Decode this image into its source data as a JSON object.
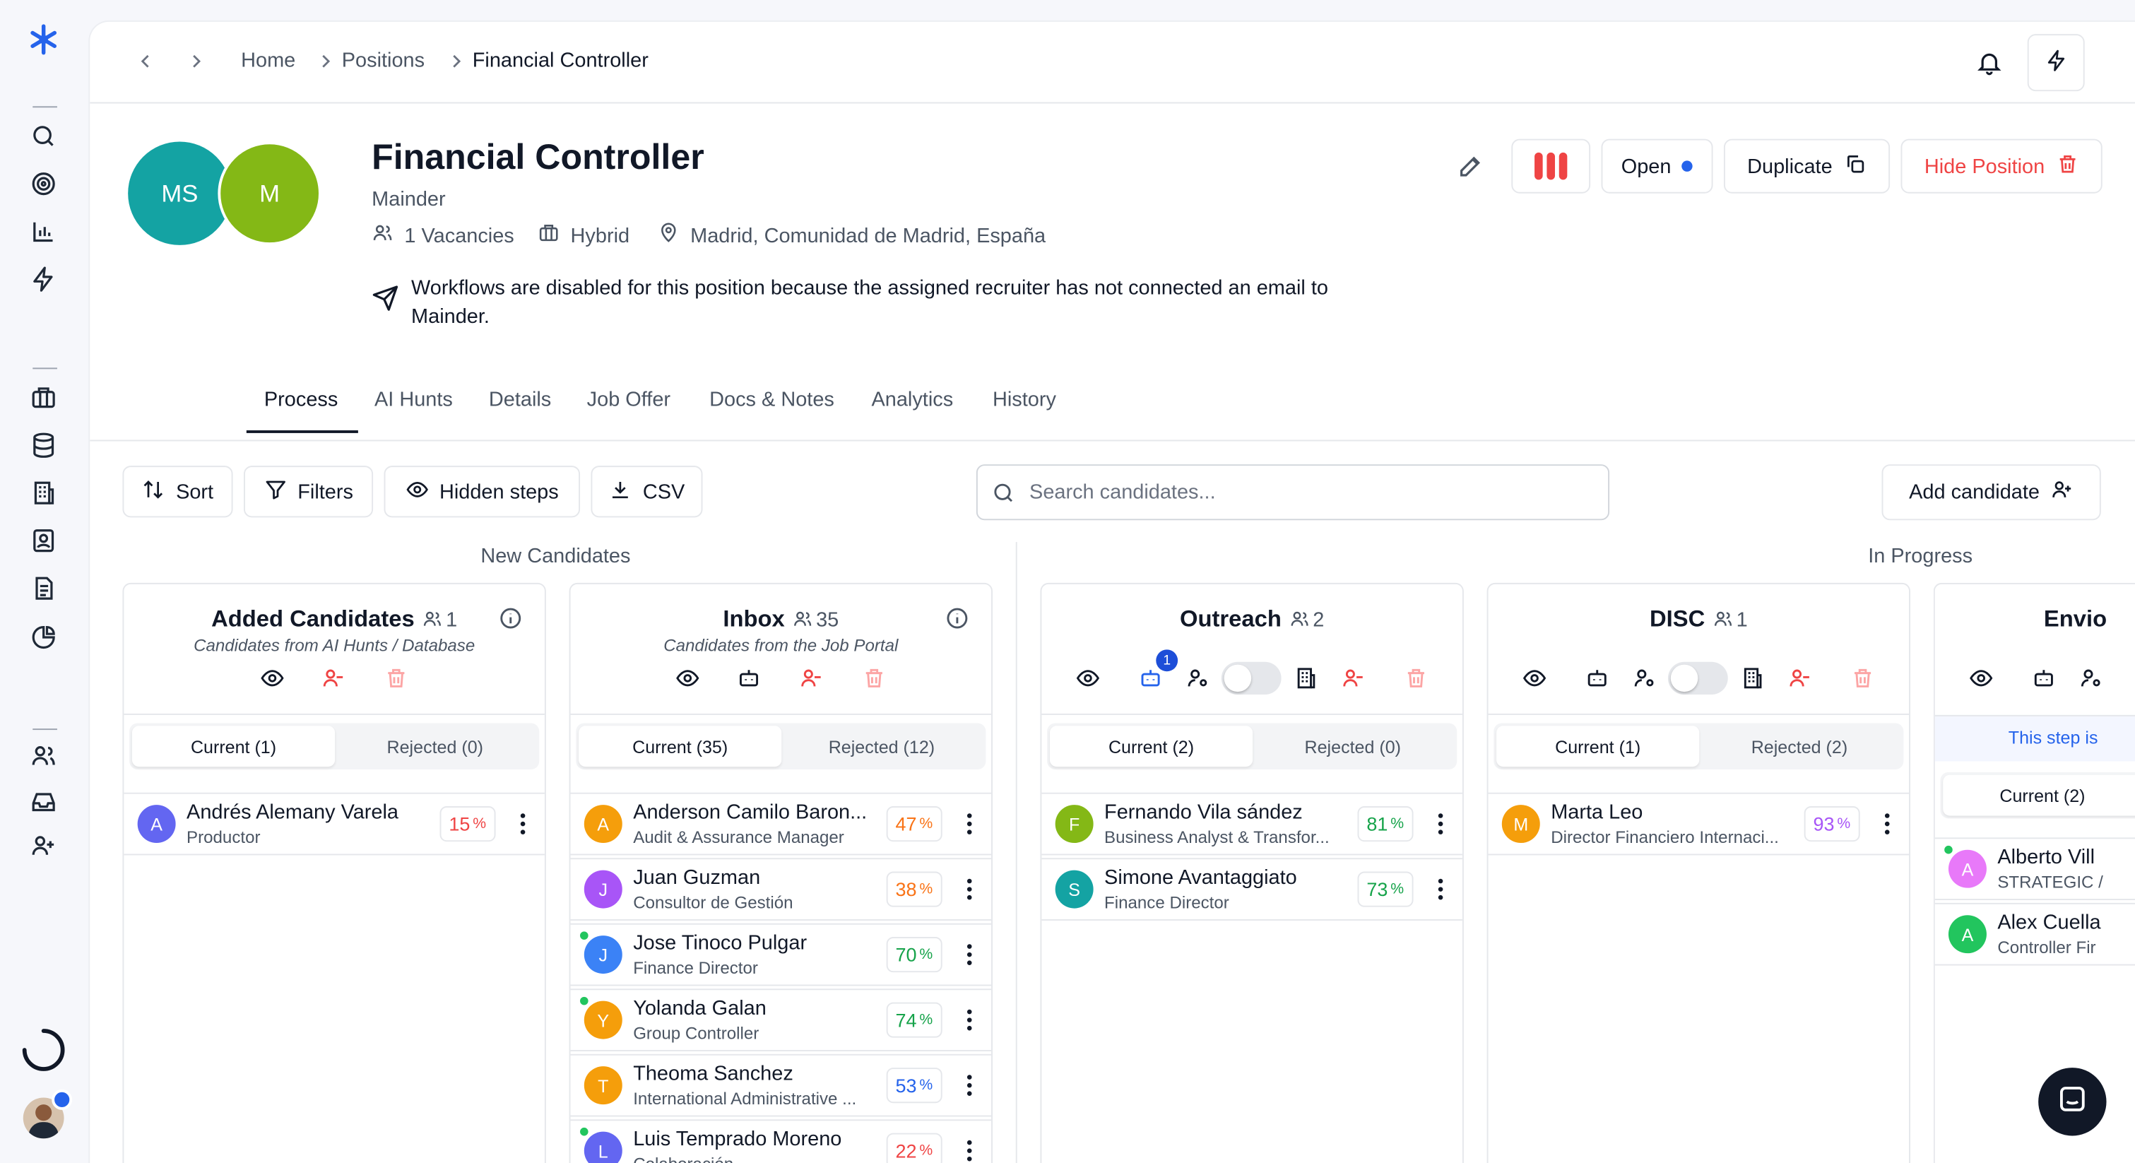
{
  "rail": {
    "logo": "flower-logo-icon",
    "items": [
      "search-icon",
      "target-icon",
      "bar-chart-icon",
      "bolt-icon",
      "briefcase-icon",
      "database-icon",
      "building-icon",
      "contact-card-icon",
      "document-icon",
      "pie-chart-icon",
      "users-icon",
      "inbox-icon",
      "user-plus-icon"
    ]
  },
  "breadcrumb": {
    "home": "Home",
    "positions": "Positions",
    "current": "Financial Controller"
  },
  "position": {
    "title": "Financial Controller",
    "company": "Mainder",
    "vacancies": "1 Vacancies",
    "work_mode": "Hybrid",
    "location": "Madrid, Comunidad de Madrid, España",
    "notice": "Workflows are disabled for this position because the assigned recruiter has not connected an email to Mainder.",
    "avatars": [
      {
        "initials": "MS",
        "color": "#14a3a3"
      },
      {
        "initials": "M",
        "color": "#84b816"
      }
    ]
  },
  "actions": {
    "status": "Open",
    "duplicate": "Duplicate",
    "hide": "Hide Position"
  },
  "tabs": [
    "Process",
    "AI Hunts",
    "Details",
    "Job Offer",
    "Docs & Notes",
    "Analytics",
    "History"
  ],
  "toolbar": {
    "sort": "Sort",
    "filters": "Filters",
    "hidden_steps": "Hidden steps",
    "csv": "CSV",
    "search_placeholder": "Search candidates...",
    "add_candidate": "Add candidate"
  },
  "groups": {
    "new": "New Candidates",
    "progress": "In Progress"
  },
  "columns": [
    {
      "title": "Added Candidates",
      "count": "1",
      "subtitle": "Candidates from AI Hunts / Database",
      "current": "Current (1)",
      "rejected": "Rejected (0)",
      "cards": [
        {
          "initial": "A",
          "color": "#6366f1",
          "name": "Andrés Alemany Varela",
          "role": "Productor",
          "score": "15",
          "score_color": "#ef4444",
          "online": false
        }
      ]
    },
    {
      "title": "Inbox",
      "count": "35",
      "subtitle": "Candidates from the Job Portal",
      "current": "Current (35)",
      "rejected": "Rejected (12)",
      "cards": [
        {
          "initial": "A",
          "color": "#f59e0b",
          "name": "Anderson Camilo Baron...",
          "role": "Audit & Assurance Manager",
          "score": "47",
          "score_color": "#f97316",
          "online": false
        },
        {
          "initial": "J",
          "color": "#a855f7",
          "name": "Juan Guzman",
          "role": "Consultor de Gestión",
          "score": "38",
          "score_color": "#f97316",
          "online": false
        },
        {
          "initial": "J",
          "color": "#3b82f6",
          "name": "Jose Tinoco Pulgar",
          "role": "Finance Director",
          "score": "70",
          "score_color": "#16a34a",
          "online": true
        },
        {
          "initial": "Y",
          "color": "#f59e0b",
          "name": "Yolanda Galan",
          "role": "Group Controller",
          "score": "74",
          "score_color": "#16a34a",
          "online": true
        },
        {
          "initial": "T",
          "color": "#f59e0b",
          "name": "Theoma Sanchez",
          "role": "International Administrative ...",
          "score": "53",
          "score_color": "#2563eb",
          "online": false
        },
        {
          "initial": "L",
          "color": "#6366f1",
          "name": "Luis Temprado Moreno",
          "role": "Colaboración",
          "score": "22",
          "score_color": "#ef4444",
          "online": true
        }
      ]
    },
    {
      "title": "Outreach",
      "count": "2",
      "bot_badge": "1",
      "current": "Current (2)",
      "rejected": "Rejected (0)",
      "cards": [
        {
          "initial": "F",
          "color": "#84b816",
          "name": "Fernando Vila sández",
          "role": "Business Analyst & Transfor...",
          "score": "81",
          "score_color": "#16a34a",
          "online": false
        },
        {
          "initial": "S",
          "color": "#14a3a3",
          "name": "Simone Avantaggiato",
          "role": "Finance Director",
          "score": "73",
          "score_color": "#16a34a",
          "online": false
        }
      ]
    },
    {
      "title": "DISC",
      "count": "1",
      "current": "Current (1)",
      "rejected": "Rejected (2)",
      "cards": [
        {
          "initial": "M",
          "color": "#f59e0b",
          "name": "Marta Leo",
          "role": "Director Financiero Internaci...",
          "score": "93",
          "score_color": "#a855f7",
          "online": false
        }
      ]
    },
    {
      "title": "Envio",
      "step_notice": "This step is",
      "current": "Current (2)",
      "cards": [
        {
          "initial": "A",
          "color": "#e879f9",
          "name": "Alberto Vill",
          "role": "STRATEGIC /",
          "online": true
        },
        {
          "initial": "A",
          "color": "#22c55e",
          "name": "Alex Cuella",
          "role": "Controller Fir",
          "online": false
        }
      ]
    }
  ]
}
